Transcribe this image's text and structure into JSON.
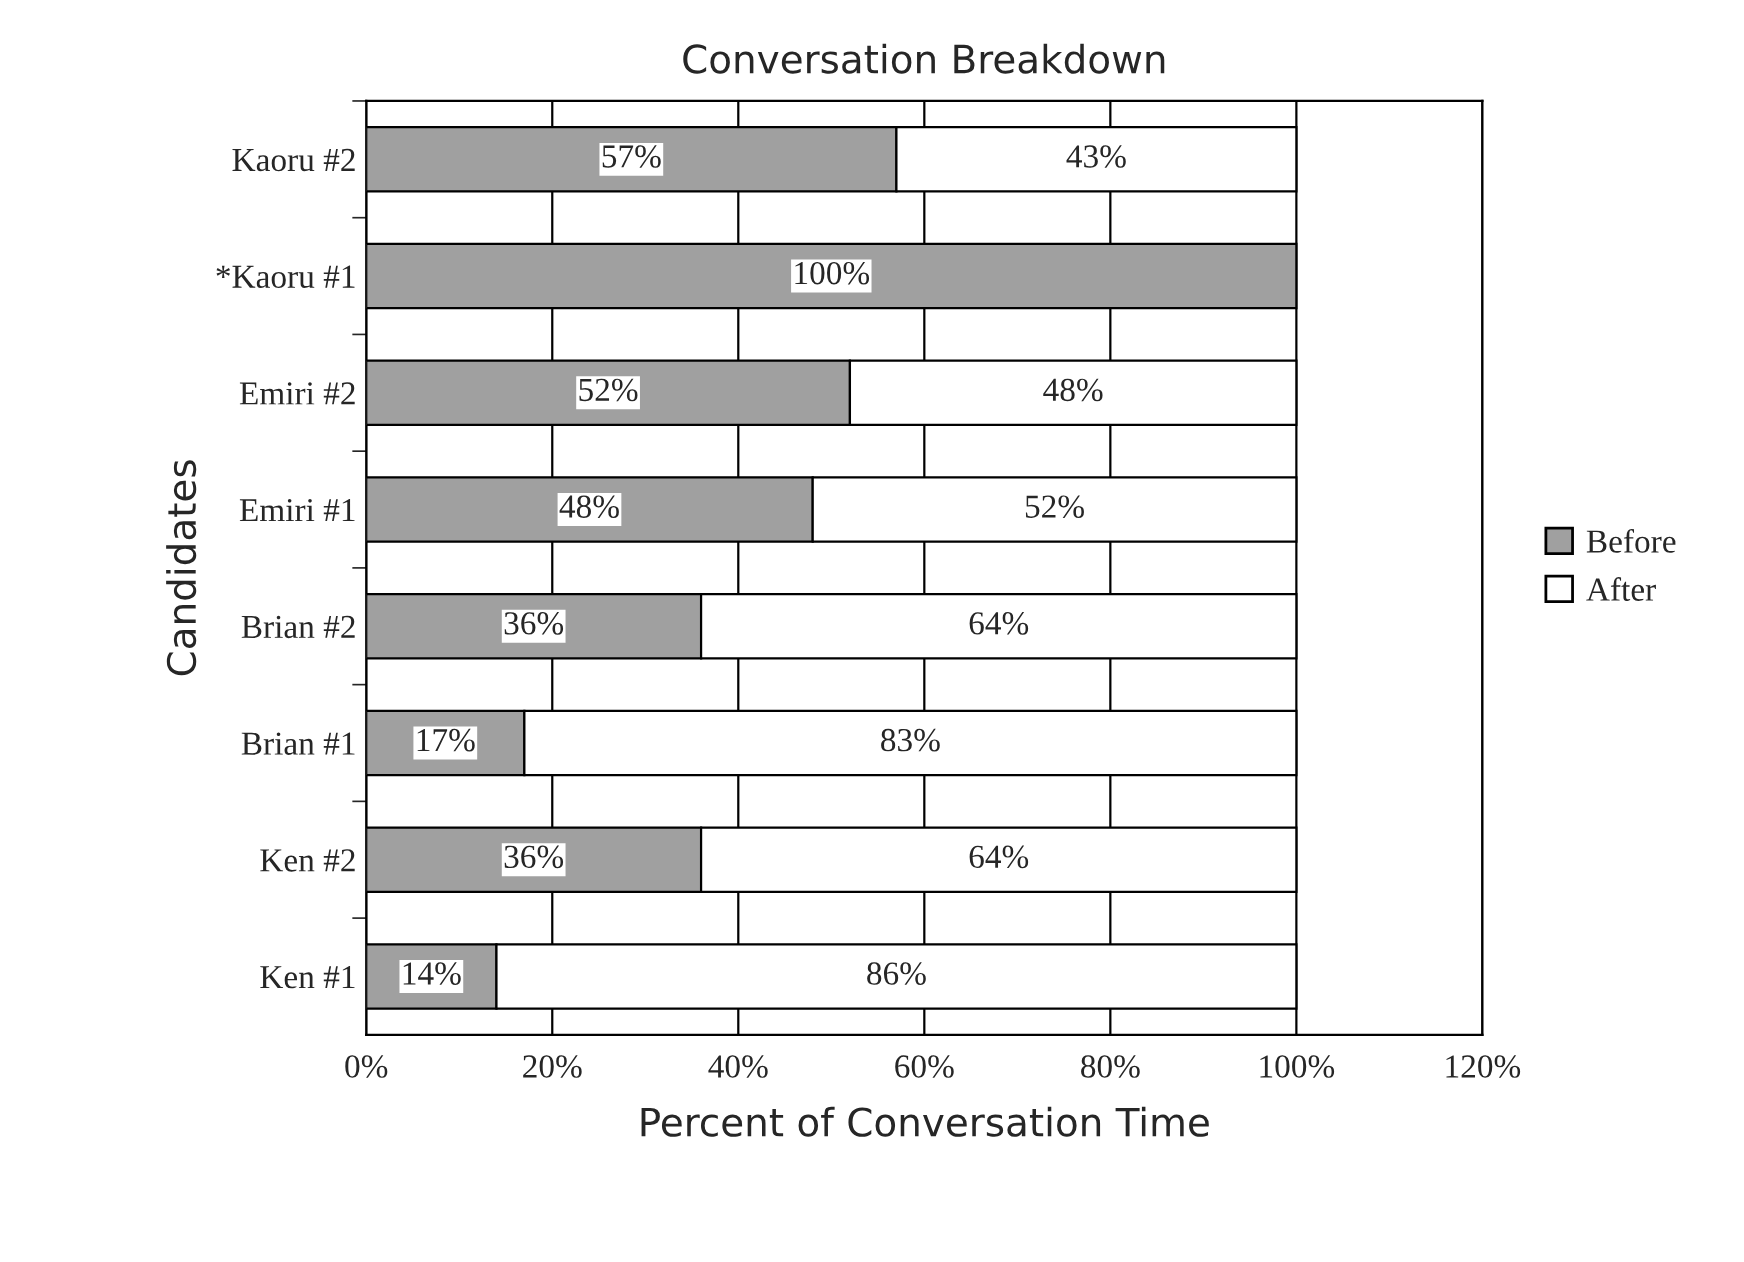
{
  "chart_data": {
    "type": "bar",
    "orientation": "horizontal",
    "stacked": true,
    "title": "Conversation Breakdown",
    "xlabel": "Percent of Conversation Time",
    "ylabel": "Candidates",
    "categories": [
      "Kaoru #2",
      "*Kaoru #1",
      "Emiri #2",
      "Emiri #1",
      "Brian #2",
      "Brian #1",
      "Ken #2",
      "Ken #1"
    ],
    "series": [
      {
        "name": "Before",
        "color": "#a0a0a0",
        "values": [
          57,
          100,
          52,
          48,
          36,
          17,
          36,
          14
        ],
        "value_labels": [
          "57%",
          "100%",
          "52%",
          "48%",
          "36%",
          "17%",
          "36%",
          "14%"
        ]
      },
      {
        "name": "After",
        "color": "#ffffff",
        "values": [
          43,
          null,
          48,
          52,
          64,
          83,
          64,
          86
        ],
        "value_labels": [
          "43%",
          null,
          "48%",
          "52%",
          "64%",
          "83%",
          "64%",
          "86%"
        ]
      }
    ],
    "xlim": [
      0,
      120
    ],
    "xticks": [
      {
        "value": 0,
        "label": "0%"
      },
      {
        "value": 20,
        "label": "20%"
      },
      {
        "value": 40,
        "label": "40%"
      },
      {
        "value": 60,
        "label": "60%"
      },
      {
        "value": 80,
        "label": "80%"
      },
      {
        "value": 100,
        "label": "100%"
      },
      {
        "value": 120,
        "label": "120%"
      }
    ],
    "grid": "x",
    "legend": "right"
  }
}
